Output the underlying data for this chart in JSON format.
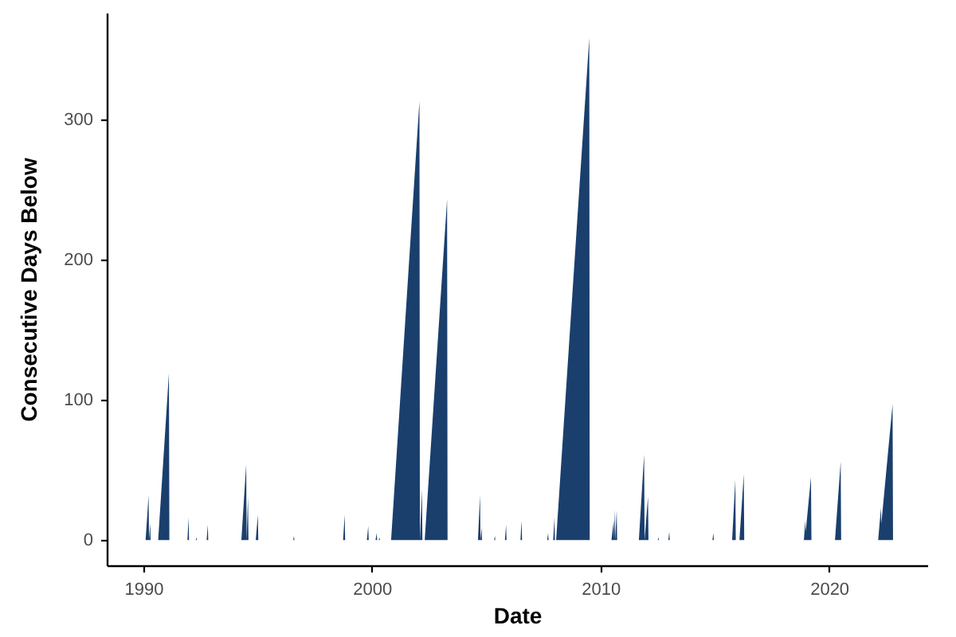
{
  "chart_data": {
    "type": "area",
    "xlabel": "Date",
    "ylabel": "Consecutive Days Below",
    "color": "#1a3f6d",
    "xlim": [
      1988.4,
      2024.3
    ],
    "xticks": [
      1990,
      2000,
      2010,
      2020
    ],
    "ylim": [
      -18,
      376
    ],
    "yticks": [
      0,
      100,
      200,
      300
    ],
    "x": [
      1990.1,
      1990.23,
      1990.25,
      1990.3,
      1990.32,
      1990.65,
      1991.12,
      1991.14,
      1991.93,
      1991.98,
      1992.0,
      1992.3,
      1992.33,
      1992.35,
      1992.77,
      1992.82,
      1992.84,
      1994.29,
      1994.5,
      1994.52,
      1994.58,
      1994.6,
      1994.92,
      1995.01,
      1995.03,
      1996.56,
      1996.59,
      1996.61,
      1998.74,
      1998.81,
      1998.83,
      1999.78,
      1999.84,
      1999.86,
      2000.16,
      2000.21,
      2000.23,
      2000.3,
      2000.33,
      2000.35,
      2000.84,
      2002.08,
      2002.1,
      2002.19,
      2002.21,
      2002.31,
      2003.29,
      2003.31,
      2004.64,
      2004.73,
      2004.75,
      2004.8,
      2004.82,
      2005.35,
      2005.38,
      2005.4,
      2005.82,
      2005.87,
      2005.89,
      2006.5,
      2006.55,
      2006.57,
      2007.67,
      2007.71,
      2007.73,
      2007.93,
      2007.99,
      2008.01,
      2008.06,
      2009.51,
      2009.53,
      2010.48,
      2010.58,
      2010.59,
      2010.62,
      2010.64,
      2010.71,
      2010.73,
      2011.68,
      2011.91,
      2011.93,
      2012.08,
      2012.1,
      2012.51,
      2012.54,
      2012.56,
      2012.97,
      2013.01,
      2013.03,
      2014.9,
      2014.94,
      2014.96,
      2015.76,
      2015.9,
      2015.92,
      2016.08,
      2016.27,
      2016.29,
      2018.9,
      2018.96,
      2018.98,
      2019.21,
      2019.23,
      2020.26,
      2020.51,
      2020.53,
      2022.15,
      2022.27,
      2022.29,
      2022.78,
      2022.8
    ],
    "values": [
      0,
      32,
      0,
      12,
      0,
      0,
      119,
      0,
      0,
      16,
      0,
      0,
      2,
      0,
      0,
      11,
      0,
      0,
      54,
      0,
      31,
      0,
      0,
      18,
      0,
      0,
      3,
      0,
      0,
      18,
      0,
      0,
      10,
      0,
      0,
      5,
      0,
      0,
      2,
      0,
      0,
      313,
      0,
      36,
      0,
      0,
      243,
      0,
      0,
      32,
      0,
      9,
      0,
      0,
      3,
      0,
      0,
      11,
      0,
      0,
      14,
      0,
      0,
      5,
      0,
      0,
      16,
      0,
      0,
      358,
      0,
      0,
      14,
      0,
      22,
      0,
      21,
      0,
      0,
      61,
      0,
      31,
      0,
      0,
      2,
      0,
      0,
      6,
      0,
      0,
      5,
      0,
      0,
      43,
      0,
      0,
      47,
      0,
      0,
      14,
      6,
      45,
      0,
      0,
      56,
      0,
      0,
      23,
      12,
      97,
      0
    ]
  }
}
